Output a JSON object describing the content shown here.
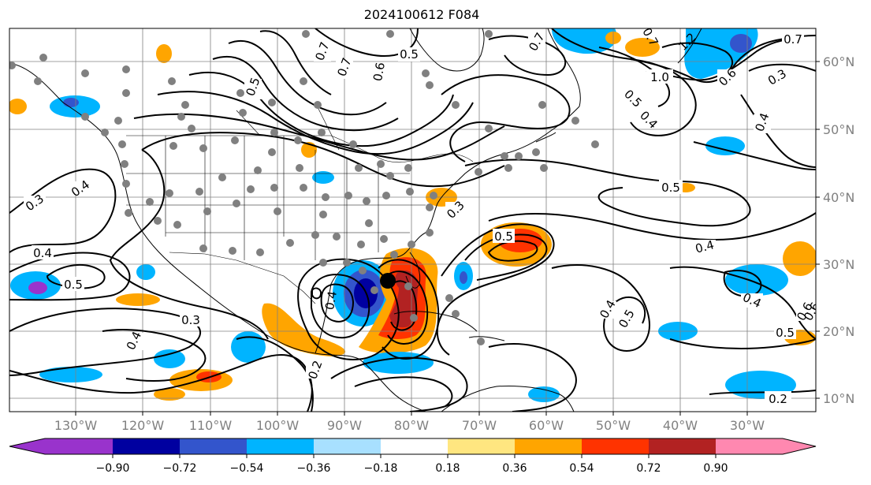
{
  "title": "2024100612 F084",
  "map": {
    "lat_labels": [
      "60°N",
      "50°N",
      "40°N",
      "30°N",
      "20°N",
      "10°N"
    ],
    "lon_labels": [
      "130°W",
      "120°W",
      "110°W",
      "100°W",
      "90°W",
      "80°W",
      "70°W",
      "60°W",
      "50°W",
      "40°W",
      "30°W"
    ],
    "contour_labels": [
      "0.3",
      "0.4",
      "0.4",
      "0.5",
      "0.3",
      "0.4",
      "0.2",
      "0.4",
      "0.5",
      "0.6",
      "0.7",
      "0.5",
      "0.7",
      "1.0",
      "0.5",
      "0.4",
      "0.6",
      "0.7",
      "0.3",
      "0.4",
      "1.2",
      "0.7",
      "0.5",
      "0.4",
      "0.6",
      "0.5",
      "0.4",
      "0.5",
      "0.3",
      "0.4",
      "0.6",
      "0.2",
      "0.7",
      "0.5"
    ],
    "colors": {
      "background": "#ffffff",
      "contour": "#000000",
      "station": "#808080",
      "storm_center": "#000000"
    }
  },
  "colorbar": {
    "ticks": [
      "−0.90",
      "−0.72",
      "−0.54",
      "−0.36",
      "−0.18",
      "0.18",
      "0.36",
      "0.54",
      "0.72",
      "0.90"
    ],
    "colors": [
      "#9933cc",
      "#0000a0",
      "#3355cc",
      "#00b4ff",
      "#a8e0ff",
      "#ffffff",
      "#ffe680",
      "#ffa500",
      "#ff3300",
      "#b22222",
      "#ff88b0"
    ]
  }
}
